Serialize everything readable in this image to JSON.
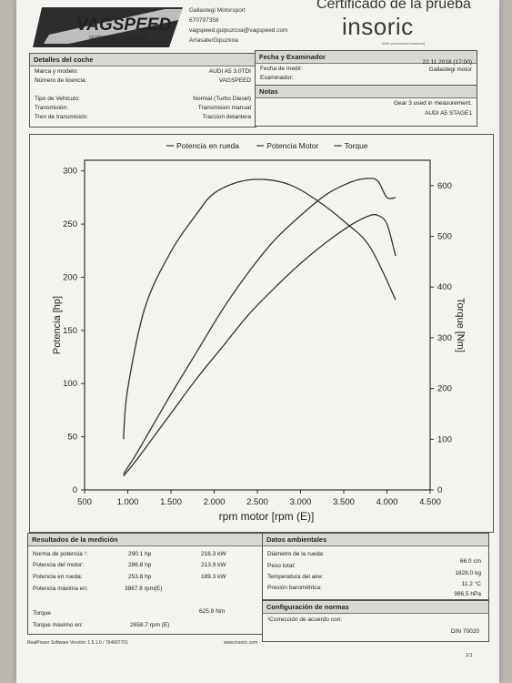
{
  "header": {
    "company_lines": [
      "Gallastegi Motorsport",
      "670797358",
      "vagspeed.guipuzcoa@vagspeed.com",
      "Arrasate/Gipuzkoa"
    ],
    "certificate_title": "Certificado de la prueba",
    "brand": "insoric",
    "brand_tagline": "better performance measuring",
    "logo_text": "VAGSPEED",
    "logo_sub": "GUIPUZCOA | GIPUZKOA"
  },
  "car_details": {
    "title": "Detalles del coche",
    "rows": [
      {
        "label": "Marca y modelo:",
        "value": "AUDI A5 3.0TDI"
      },
      {
        "label": "Número de licencia:",
        "value": "VAGSPEED"
      },
      {
        "label": "Tipo de Vehículo:",
        "value": "Normal (Turbo Diesel)"
      },
      {
        "label": "Transmisión:",
        "value": "Transmision manual"
      },
      {
        "label": "Tren de transmisión:",
        "value": "Traccion delantera"
      }
    ]
  },
  "examiner": {
    "title": "Fecha y Examinador",
    "date_label": "Fecha de medir:",
    "date_value": "22.11.2018 (17:00)",
    "examiner_label": "Examinador:",
    "examiner_value": "Gallastegi motor"
  },
  "notes": {
    "title": "Notas",
    "line1": "Gear 3 used in measurement.",
    "line2": "AUDI A5 STAGE1"
  },
  "results": {
    "title": "Resultados de la medición",
    "rows": [
      {
        "label": "Norma de potencia ¹:",
        "v1": "290.1 hp",
        "v2": "216.3 kW"
      },
      {
        "label": "Potencia del motor:",
        "v1": "286.8 hp",
        "v2": "213.9 kW"
      },
      {
        "label": "Potencia en rueda:",
        "v1": "253.8 hp",
        "v2": "189.3 kW"
      },
      {
        "label": "Potencia máxima en:",
        "v1": "3867.8 rpm(E)",
        "v2": ""
      }
    ],
    "torque_label": "Torque",
    "torque_value": "625.9 Nm",
    "torque_max_label": "Torque maximo en:",
    "torque_max_value": "2658.7 rpm (E)"
  },
  "environment": {
    "title": "Datos ambientales",
    "rows": [
      {
        "label": "Diámetro de la rueda:",
        "value": "66.0 cm"
      },
      {
        "label": "Peso total:",
        "value": "1828.0 kg"
      },
      {
        "label": "Temperatura del aire:",
        "value": "11.2 °C"
      },
      {
        "label": "Presión barométrica:",
        "value": "986.5 hPa"
      }
    ]
  },
  "norms": {
    "title": "Configuración de normas",
    "label": "¹Corrección de acuerdo con:",
    "value": "DIN 70020"
  },
  "footer": {
    "software": "RealPower Software Versión: 1.5.1.0 / 764907701",
    "website": "www.insoric.com",
    "page": "1/1"
  },
  "chart_data": {
    "type": "line",
    "legend": [
      "Potencia en rueda",
      "Potencia Motor",
      "Torque"
    ],
    "xlabel": "rpm motor [rpm (E)]",
    "ylabel": "Potencia [hp]",
    "y2label": "Torque [Nm]",
    "xlim": [
      500,
      4500
    ],
    "ylim": [
      0,
      310
    ],
    "y2lim": [
      0,
      650
    ],
    "x_ticks": [
      "500",
      "1.000",
      "1.500",
      "2.000",
      "2.500",
      "3.000",
      "3.500",
      "4.000",
      "4.500"
    ],
    "y_ticks": [
      "0",
      "50",
      "100",
      "150",
      "200",
      "250",
      "300"
    ],
    "y2_ticks": [
      "0",
      "100",
      "200",
      "300",
      "400",
      "500",
      "600"
    ],
    "series": [
      {
        "name": "Potencia en rueda",
        "axis": "left",
        "x": [
          950,
          1100,
          1300,
          1500,
          1800,
          2100,
          2400,
          2700,
          3000,
          3300,
          3600,
          3800,
          3900,
          4000,
          4100
        ],
        "y": [
          13,
          28,
          50,
          72,
          105,
          135,
          165,
          190,
          213,
          233,
          250,
          258,
          258,
          250,
          220
        ]
      },
      {
        "name": "Potencia Motor",
        "axis": "left",
        "x": [
          950,
          1100,
          1300,
          1500,
          1800,
          2100,
          2400,
          2700,
          3000,
          3300,
          3600,
          3800,
          3900,
          4000,
          4100
        ],
        "y": [
          15,
          34,
          62,
          90,
          130,
          170,
          205,
          235,
          258,
          278,
          290,
          293,
          290,
          275,
          275
        ]
      },
      {
        "name": "Torque",
        "axis": "right",
        "x": [
          950,
          1000,
          1200,
          1500,
          1800,
          2000,
          2300,
          2600,
          2900,
          3200,
          3500,
          3800,
          4100
        ],
        "y": [
          100,
          200,
          360,
          470,
          545,
          585,
          608,
          612,
          600,
          570,
          530,
          480,
          375
        ]
      }
    ]
  }
}
